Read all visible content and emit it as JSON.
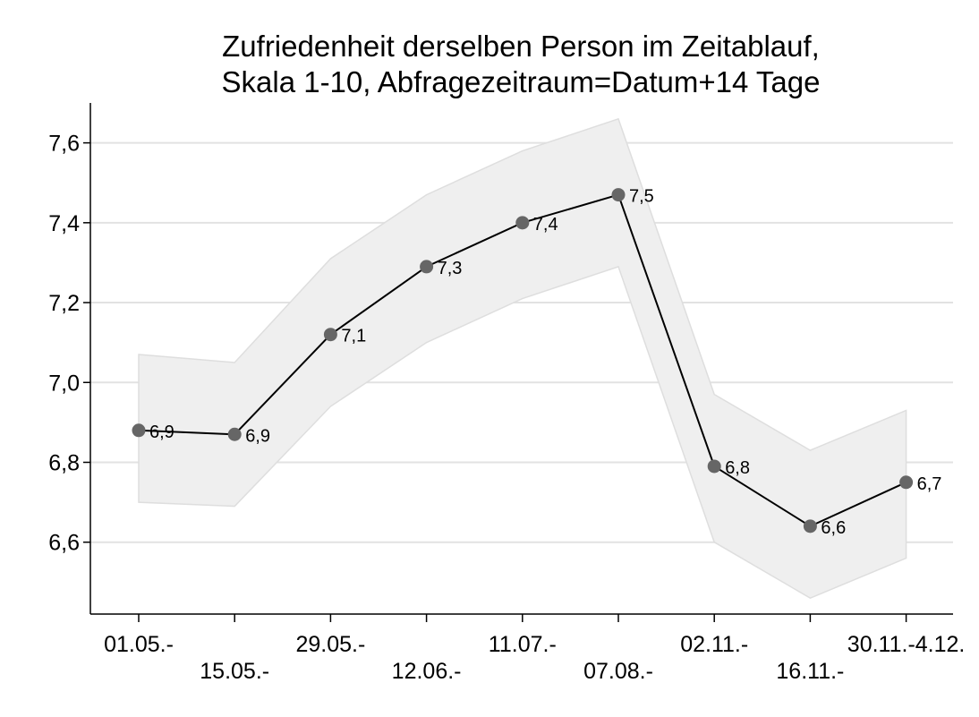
{
  "chart_data": {
    "type": "line",
    "title_lines": [
      "Zufriedenheit derselben Person im Zeitablauf,",
      "Skala 1-10, Abfragezeitraum=Datum+14 Tage"
    ],
    "categories": [
      "01.05.-",
      "15.05.-",
      "29.05.-",
      "12.06.-",
      "11.07.-",
      "07.08.-",
      "02.11.-",
      "16.11.-",
      "30.11.-4.12."
    ],
    "series": [
      {
        "values": [
          6.88,
          6.87,
          7.12,
          7.29,
          7.4,
          7.47,
          6.79,
          6.64,
          6.75
        ],
        "data_labels": [
          "6,9",
          "6,9",
          "7,1",
          "7,3",
          "7,4",
          "7,5",
          "6,8",
          "6,6",
          "6,7"
        ],
        "ci_lower": [
          6.7,
          6.69,
          6.94,
          7.1,
          7.21,
          7.29,
          6.6,
          6.46,
          6.56
        ],
        "ci_upper": [
          7.07,
          7.05,
          7.31,
          7.47,
          7.58,
          7.66,
          6.97,
          6.83,
          6.93
        ]
      }
    ],
    "y_ticks": [
      6.6,
      6.8,
      7.0,
      7.2,
      7.4,
      7.6
    ],
    "y_tick_labels": [
      "6,6",
      "6,8",
      "7,0",
      "7,2",
      "7,4",
      "7,6"
    ],
    "ylim": [
      6.42,
      7.7
    ],
    "grid": "horizontal",
    "colors": {
      "line": "#000000",
      "marker": "#666666",
      "band": "#efefef",
      "band_stroke": "#dedede",
      "grid": "#e2e2e2",
      "axis": "#000000"
    }
  }
}
